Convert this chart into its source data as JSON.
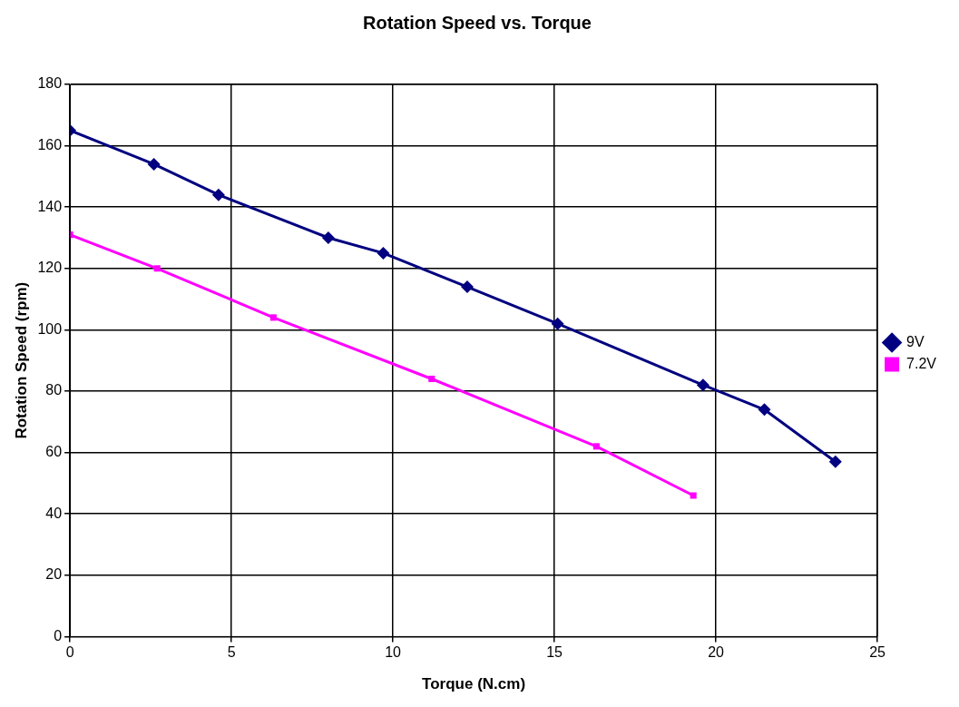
{
  "chart_data": {
    "type": "line",
    "title": "Rotation Speed vs. Torque",
    "xlabel": "Torque (N.cm)",
    "ylabel": "Rotation Speed (rpm)",
    "xlim": [
      0,
      25
    ],
    "xticks": [
      0,
      5,
      10,
      15,
      20,
      25
    ],
    "ylim": [
      0,
      180
    ],
    "yticks": [
      0,
      20,
      40,
      60,
      80,
      100,
      120,
      140,
      160,
      180
    ],
    "grid": true,
    "legend": "right",
    "line_style": "solid",
    "series": [
      {
        "name": "9V",
        "color": "#000080",
        "marker": "diamond",
        "x": [
          0,
          2.6,
          4.6,
          8.0,
          9.7,
          12.3,
          15.1,
          19.6,
          21.5,
          23.7
        ],
        "values": [
          165,
          154,
          144,
          130,
          125,
          114,
          102,
          82,
          74,
          57
        ]
      },
      {
        "name": "7.2V",
        "color": "#ff00ff",
        "marker": "square",
        "x": [
          0,
          2.7,
          6.3,
          11.2,
          16.3,
          19.3
        ],
        "values": [
          131,
          120,
          104,
          84,
          62,
          46
        ]
      }
    ]
  }
}
